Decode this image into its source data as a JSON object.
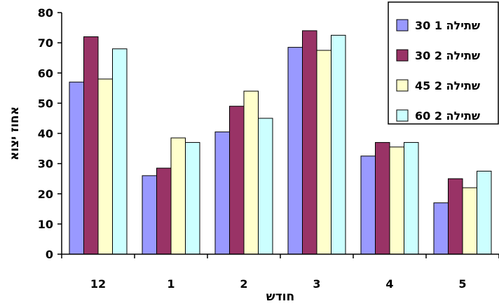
{
  "chart_data": {
    "type": "bar",
    "title": "",
    "xlabel": "חודש",
    "ylabel": "אחוז יצוא",
    "categories": [
      "12",
      "1",
      "2",
      "3",
      "4",
      "5"
    ],
    "ylim": [
      0,
      80
    ],
    "yticks": [
      0,
      10,
      20,
      30,
      40,
      50,
      60,
      70,
      80
    ],
    "grid": false,
    "legend": "top-right",
    "series": [
      {
        "name": "שתילה 1 30",
        "color": "#9999ff",
        "values": [
          57,
          26,
          40.5,
          68.5,
          32.5,
          17
        ]
      },
      {
        "name": "שתילה 2 30",
        "color": "#993366",
        "values": [
          72,
          28.5,
          49,
          74,
          37,
          25
        ]
      },
      {
        "name": "שתילה 2 45",
        "color": "#ffffcc",
        "values": [
          58,
          38.5,
          54,
          67.5,
          35.5,
          22
        ]
      },
      {
        "name": "שתילה 2 60",
        "color": "#ccffff",
        "values": [
          68,
          37,
          45,
          72.5,
          37,
          27.5
        ]
      }
    ]
  }
}
